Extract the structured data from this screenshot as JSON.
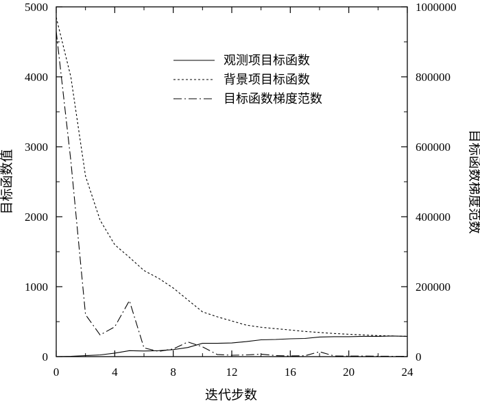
{
  "chart_data": {
    "type": "line",
    "xlabel": "迭代步数",
    "ylabel_left": "目标函数值",
    "ylabel_right": "目标函数梯度范数",
    "xlim": [
      0,
      24
    ],
    "ylim_left": [
      0,
      5000
    ],
    "ylim_right": [
      0,
      1000000
    ],
    "x_ticks": [
      0,
      4,
      8,
      12,
      16,
      20,
      24
    ],
    "y_ticks_left": [
      0,
      1000,
      2000,
      3000,
      4000,
      5000
    ],
    "y_ticks_right": [
      0,
      200000,
      400000,
      600000,
      800000,
      1000000
    ],
    "grid": false,
    "legend_position": "top-center",
    "series": [
      {
        "name": "观测项目标函数",
        "axis": "left",
        "style": "solid",
        "x": [
          0,
          1,
          2,
          3,
          4,
          5,
          6,
          7,
          8,
          9,
          10,
          11,
          12,
          13,
          14,
          15,
          16,
          17,
          18,
          19,
          20,
          21,
          22,
          23,
          24
        ],
        "values": [
          0,
          5,
          15,
          25,
          50,
          85,
          80,
          85,
          100,
          130,
          190,
          190,
          195,
          215,
          240,
          245,
          255,
          260,
          280,
          285,
          285,
          290,
          290,
          295,
          290
        ]
      },
      {
        "name": "背景项目标函数",
        "axis": "left",
        "style": "dotted",
        "x": [
          0,
          1,
          2,
          3,
          4,
          5,
          6,
          7,
          8,
          9,
          10,
          11,
          12,
          13,
          14,
          15,
          16,
          17,
          18,
          19,
          20,
          21,
          22,
          23,
          24
        ],
        "values": [
          4850,
          4000,
          2580,
          1950,
          1600,
          1420,
          1230,
          1120,
          980,
          810,
          640,
          570,
          510,
          450,
          420,
          400,
          380,
          360,
          345,
          330,
          320,
          310,
          300,
          295,
          290
        ]
      },
      {
        "name": "目标函数梯度范数",
        "axis": "right",
        "style": "dashdot",
        "x": [
          0,
          1,
          2,
          3,
          4,
          5,
          6,
          7,
          8,
          9,
          10,
          11,
          12,
          13,
          14,
          15,
          16,
          17,
          18,
          19,
          20,
          21,
          22,
          23,
          24
        ],
        "values": [
          930000,
          560000,
          120000,
          62000,
          85000,
          160000,
          25000,
          15000,
          22000,
          42000,
          28000,
          6000,
          4000,
          5000,
          7000,
          3000,
          2000,
          2500,
          14000,
          2000,
          1500,
          1500,
          1200,
          1000,
          1000
        ]
      }
    ]
  }
}
